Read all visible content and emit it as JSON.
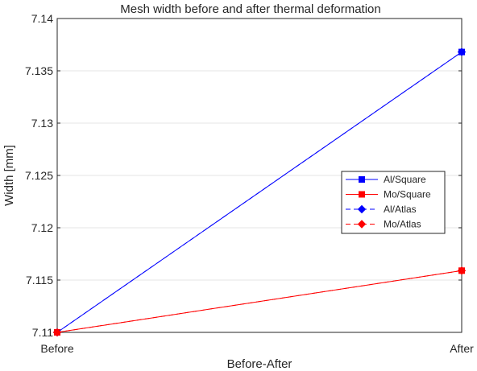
{
  "chart_data": {
    "type": "line",
    "title": "Mesh width before and after thermal deformation",
    "xlabel": "Before-After",
    "ylabel": "Width [mm]",
    "categories": [
      "Before",
      "After"
    ],
    "ylim": [
      7.11,
      7.14
    ],
    "yticks": [
      "7.11",
      "7.115",
      "7.12",
      "7.125",
      "7.13",
      "7.135",
      "7.14"
    ],
    "grid": true,
    "legend_position": "right-middle",
    "series": [
      {
        "name": "Al/Square",
        "values": [
          7.11,
          7.1368
        ],
        "color": "#0000ff",
        "marker": "square",
        "linestyle": "solid"
      },
      {
        "name": "Mo/Square",
        "values": [
          7.11,
          7.1159
        ],
        "color": "#ff0000",
        "marker": "square",
        "linestyle": "solid"
      },
      {
        "name": "Al/Atlas",
        "values": [
          7.11,
          7.1368
        ],
        "color": "#0000ff",
        "marker": "diamond",
        "linestyle": "dashed"
      },
      {
        "name": "Mo/Atlas",
        "values": [
          7.11,
          7.1159
        ],
        "color": "#ff0000",
        "marker": "diamond",
        "linestyle": "dashed"
      }
    ]
  }
}
